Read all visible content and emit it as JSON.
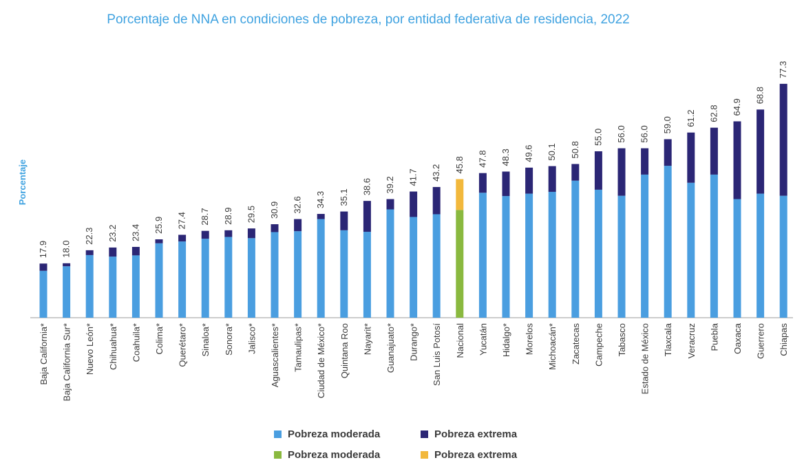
{
  "chart_data": {
    "type": "bar",
    "stacked": true,
    "title": "Porcentaje de NNA en condiciones de pobreza, por entidad federativa de residencia, 2022",
    "ylabel": "Porcentaje",
    "ylim": [
      0,
      80
    ],
    "grid": false,
    "legend_position": "bottom",
    "categories": [
      "Baja California*",
      "Baja California Sur*",
      "Nuevo León*",
      "Chihuahua*",
      "Coahuila*",
      "Colima*",
      "Querétaro*",
      "Sinaloa*",
      "Sonora*",
      "Jalisco*",
      "Aguascalientes*",
      "Tamaulipas*",
      "Ciudad de México*",
      "Quintana Roo",
      "Nayarit*",
      "Guanajuato*",
      "Durango*",
      "San Luis Potosí",
      "Nacional",
      "Yucatán",
      "Hidalgo*",
      "Morelos",
      "Michoacán*",
      "Zacatecas",
      "Campeche",
      "Tabasco",
      "Estado de México",
      "Tlaxcala",
      "Veracruz",
      "Puebla",
      "Oaxaca",
      "Guerrero",
      "Chiapas"
    ],
    "series": [
      {
        "name": "Pobreza moderada",
        "values": [
          15.5,
          17.0,
          20.7,
          20.2,
          20.6,
          24.6,
          25.2,
          26.1,
          26.7,
          26.3,
          28.3,
          28.6,
          32.6,
          28.9,
          28.4,
          35.8,
          33.3,
          34.2,
          35.6,
          41.3,
          40.2,
          41.0,
          41.6,
          45.3,
          42.3,
          40.3,
          47.3,
          50.2,
          44.6,
          47.3,
          39.2,
          41.0,
          40.3
        ]
      },
      {
        "name": "Pobreza extrema",
        "values": [
          2.4,
          1.0,
          1.6,
          3.0,
          2.8,
          1.3,
          2.2,
          2.6,
          2.2,
          3.2,
          2.6,
          4.0,
          1.7,
          6.2,
          10.2,
          3.4,
          8.4,
          9.0,
          10.2,
          6.5,
          8.1,
          8.6,
          8.5,
          5.5,
          12.7,
          15.7,
          8.7,
          8.8,
          16.6,
          15.5,
          25.7,
          27.8,
          37.0
        ]
      }
    ],
    "totals": [
      17.9,
      18.0,
      22.3,
      23.2,
      23.4,
      25.9,
      27.4,
      28.7,
      28.9,
      29.5,
      30.9,
      32.6,
      34.3,
      35.1,
      38.6,
      39.2,
      41.7,
      43.2,
      45.8,
      47.8,
      48.3,
      49.6,
      50.1,
      50.8,
      55.0,
      56.0,
      56.0,
      59.0,
      61.2,
      62.8,
      64.9,
      68.8,
      77.3
    ],
    "highlight_category": "Nacional",
    "legend": [
      {
        "label": "Pobreza moderada",
        "color": "#4a9ee0"
      },
      {
        "label": "Pobreza extrema",
        "color": "#2b2675"
      },
      {
        "label": "Pobreza moderada",
        "color": "#8ab93f"
      },
      {
        "label": "Pobreza extrema",
        "color": "#f2b83c"
      }
    ],
    "colors": {
      "moderate": "#4a9ee0",
      "extreme": "#2b2675",
      "national_moderate": "#8ab93f",
      "national_extreme": "#f2b83c",
      "title": "#3fa2e0",
      "ylabel": "#3fa2e0",
      "text": "#3a3a3a"
    }
  }
}
